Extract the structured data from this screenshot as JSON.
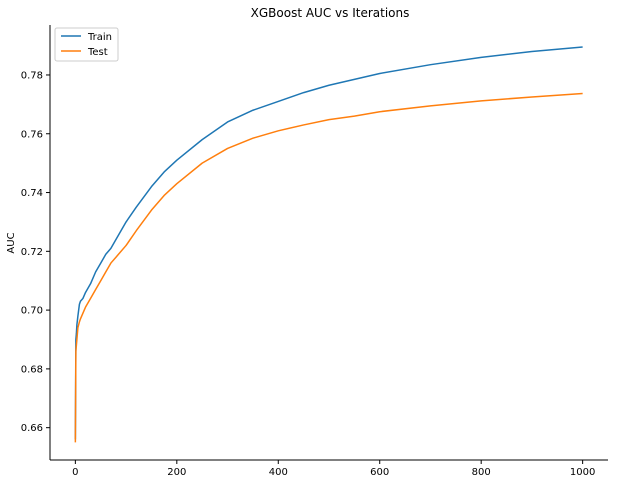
{
  "chart_data": {
    "type": "line",
    "title": "XGBoost AUC vs Iterations",
    "xlabel": "",
    "ylabel": "AUC",
    "xlim": [
      -50,
      1050
    ],
    "ylim": [
      0.649,
      0.797
    ],
    "xticks": [
      0,
      200,
      400,
      600,
      800,
      1000
    ],
    "yticks": [
      0.66,
      0.68,
      0.7,
      0.72,
      0.74,
      0.76,
      0.78
    ],
    "ytick_labels": [
      "0.66",
      "0.68",
      "0.70",
      "0.72",
      "0.74",
      "0.76",
      "0.78"
    ],
    "grid": false,
    "legend_position": "top-left",
    "series": [
      {
        "name": "Train",
        "color": "#1f77b4",
        "x": [
          0,
          1,
          2,
          3,
          5,
          8,
          10,
          15,
          20,
          30,
          40,
          50,
          60,
          70,
          80,
          100,
          120,
          150,
          175,
          200,
          250,
          300,
          350,
          400,
          450,
          500,
          550,
          600,
          700,
          800,
          900,
          1000
        ],
        "y": [
          0.656,
          0.69,
          0.692,
          0.695,
          0.698,
          0.702,
          0.703,
          0.704,
          0.706,
          0.709,
          0.713,
          0.716,
          0.719,
          0.721,
          0.724,
          0.73,
          0.735,
          0.742,
          0.747,
          0.751,
          0.758,
          0.764,
          0.768,
          0.771,
          0.774,
          0.7765,
          0.7785,
          0.7805,
          0.7835,
          0.786,
          0.788,
          0.7895
        ]
      },
      {
        "name": "Test",
        "color": "#ff7f0e",
        "x": [
          0,
          1,
          2,
          3,
          5,
          8,
          10,
          15,
          20,
          30,
          40,
          50,
          60,
          70,
          80,
          100,
          120,
          150,
          175,
          200,
          250,
          300,
          350,
          400,
          450,
          500,
          550,
          600,
          700,
          800,
          900,
          1000
        ],
        "y": [
          0.655,
          0.686,
          0.688,
          0.69,
          0.694,
          0.696,
          0.697,
          0.699,
          0.701,
          0.704,
          0.707,
          0.71,
          0.713,
          0.716,
          0.718,
          0.722,
          0.727,
          0.734,
          0.739,
          0.743,
          0.75,
          0.755,
          0.7585,
          0.761,
          0.763,
          0.7648,
          0.766,
          0.7675,
          0.7695,
          0.7712,
          0.7725,
          0.7737
        ]
      }
    ]
  }
}
